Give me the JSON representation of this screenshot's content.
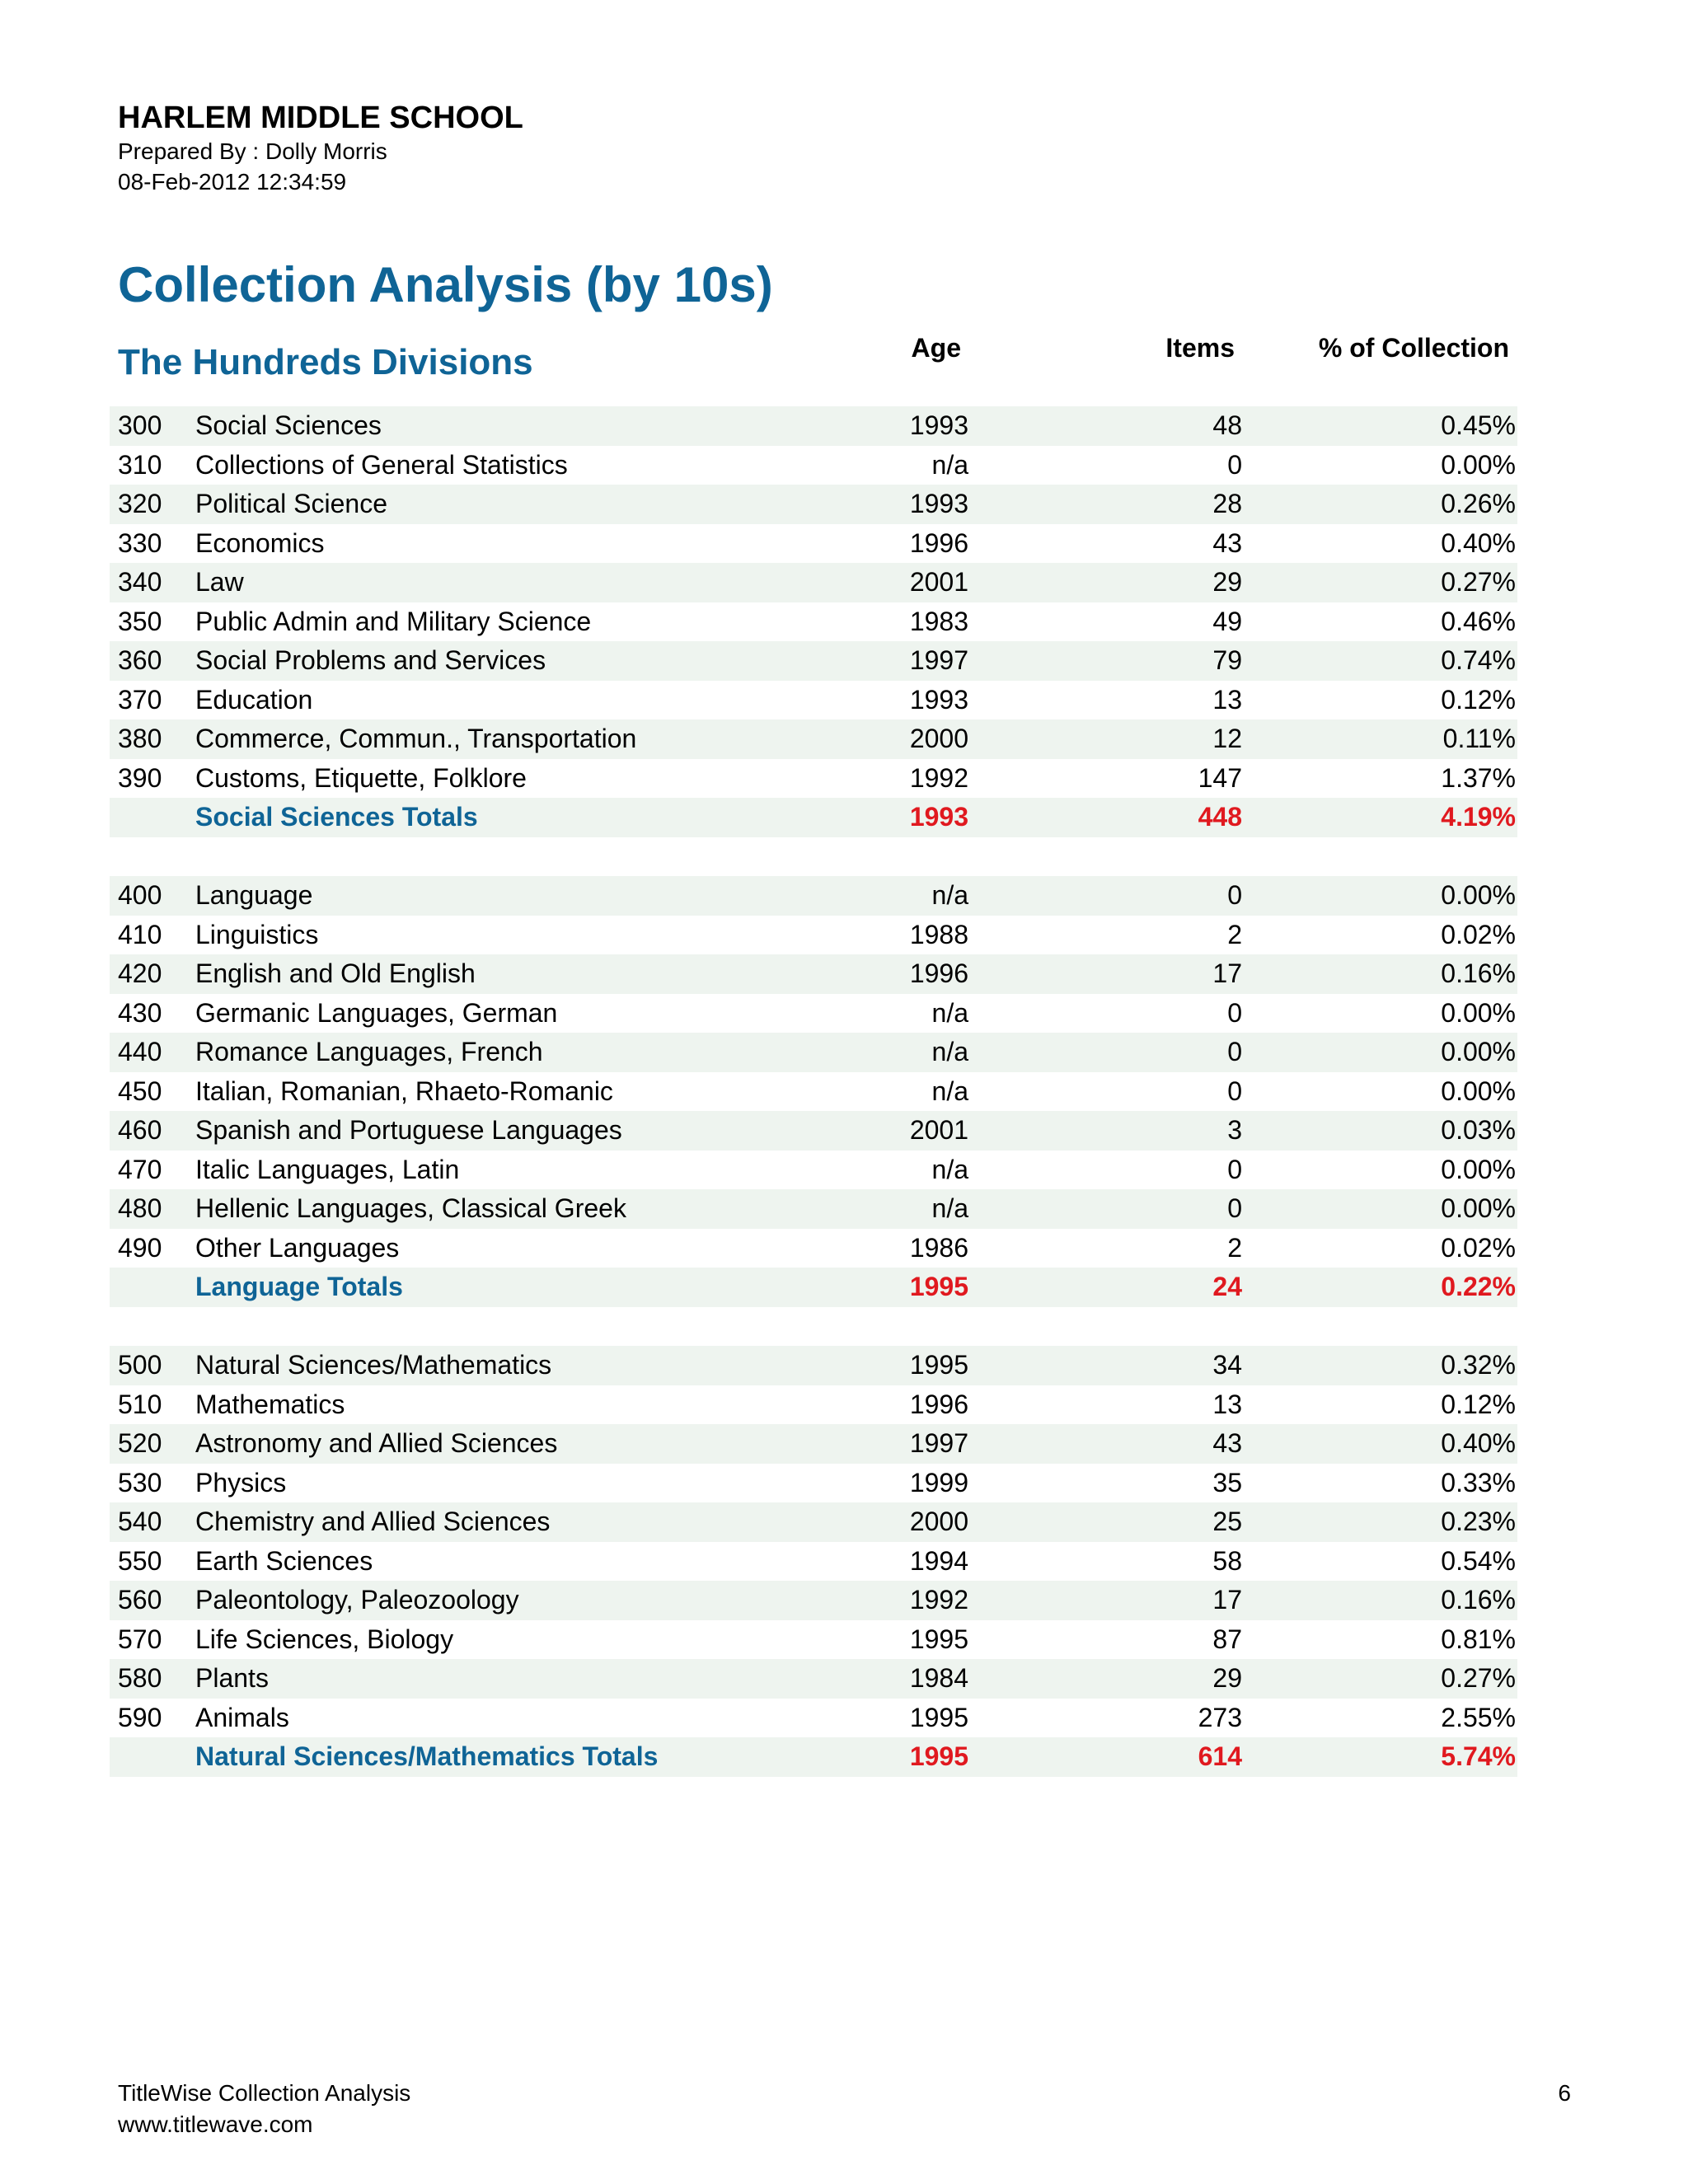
{
  "header": {
    "school": "HARLEM MIDDLE SCHOOL",
    "prepared_by": "Prepared By : Dolly Morris",
    "timestamp": "08-Feb-2012 12:34:59"
  },
  "report": {
    "title": "Collection Analysis (by 10s)",
    "section_title": "The Hundreds Divisions"
  },
  "columns": {
    "age": "Age",
    "items": "Items",
    "pct": "% of Collection"
  },
  "groups": [
    {
      "rows": [
        {
          "code": "300",
          "name": "Social Sciences",
          "age": "1993",
          "items": "48",
          "pct": "0.45%"
        },
        {
          "code": "310",
          "name": "Collections of General Statistics",
          "age": "n/a",
          "items": "0",
          "pct": "0.00%"
        },
        {
          "code": "320",
          "name": "Political Science",
          "age": "1993",
          "items": "28",
          "pct": "0.26%"
        },
        {
          "code": "330",
          "name": "Economics",
          "age": "1996",
          "items": "43",
          "pct": "0.40%"
        },
        {
          "code": "340",
          "name": "Law",
          "age": "2001",
          "items": "29",
          "pct": "0.27%"
        },
        {
          "code": "350",
          "name": "Public Admin and Military Science",
          "age": "1983",
          "items": "49",
          "pct": "0.46%"
        },
        {
          "code": "360",
          "name": "Social Problems and Services",
          "age": "1997",
          "items": "79",
          "pct": "0.74%"
        },
        {
          "code": "370",
          "name": "Education",
          "age": "1993",
          "items": "13",
          "pct": "0.12%"
        },
        {
          "code": "380",
          "name": "Commerce, Commun., Transportation",
          "age": "2000",
          "items": "12",
          "pct": "0.11%"
        },
        {
          "code": "390",
          "name": "Customs, Etiquette, Folklore",
          "age": "1992",
          "items": "147",
          "pct": "1.37%"
        }
      ],
      "total": {
        "name": "Social Sciences Totals",
        "age": "1993",
        "items": "448",
        "pct": "4.19%"
      }
    },
    {
      "rows": [
        {
          "code": "400",
          "name": "Language",
          "age": "n/a",
          "items": "0",
          "pct": "0.00%"
        },
        {
          "code": "410",
          "name": "Linguistics",
          "age": "1988",
          "items": "2",
          "pct": "0.02%"
        },
        {
          "code": "420",
          "name": "English and Old English",
          "age": "1996",
          "items": "17",
          "pct": "0.16%"
        },
        {
          "code": "430",
          "name": "Germanic Languages, German",
          "age": "n/a",
          "items": "0",
          "pct": "0.00%"
        },
        {
          "code": "440",
          "name": "Romance Languages, French",
          "age": "n/a",
          "items": "0",
          "pct": "0.00%"
        },
        {
          "code": "450",
          "name": "Italian, Romanian, Rhaeto-Romanic",
          "age": "n/a",
          "items": "0",
          "pct": "0.00%"
        },
        {
          "code": "460",
          "name": "Spanish and Portuguese Languages",
          "age": "2001",
          "items": "3",
          "pct": "0.03%"
        },
        {
          "code": "470",
          "name": "Italic Languages, Latin",
          "age": "n/a",
          "items": "0",
          "pct": "0.00%"
        },
        {
          "code": "480",
          "name": "Hellenic Languages, Classical Greek",
          "age": "n/a",
          "items": "0",
          "pct": "0.00%"
        },
        {
          "code": "490",
          "name": "Other Languages",
          "age": "1986",
          "items": "2",
          "pct": "0.02%"
        }
      ],
      "total": {
        "name": "Language Totals",
        "age": "1995",
        "items": "24",
        "pct": "0.22%"
      }
    },
    {
      "rows": [
        {
          "code": "500",
          "name": "Natural Sciences/Mathematics",
          "age": "1995",
          "items": "34",
          "pct": "0.32%"
        },
        {
          "code": "510",
          "name": "Mathematics",
          "age": "1996",
          "items": "13",
          "pct": "0.12%"
        },
        {
          "code": "520",
          "name": "Astronomy and Allied Sciences",
          "age": "1997",
          "items": "43",
          "pct": "0.40%"
        },
        {
          "code": "530",
          "name": "Physics",
          "age": "1999",
          "items": "35",
          "pct": "0.33%"
        },
        {
          "code": "540",
          "name": "Chemistry and Allied Sciences",
          "age": "2000",
          "items": "25",
          "pct": "0.23%"
        },
        {
          "code": "550",
          "name": "Earth Sciences",
          "age": "1994",
          "items": "58",
          "pct": "0.54%"
        },
        {
          "code": "560",
          "name": "Paleontology, Paleozoology",
          "age": "1992",
          "items": "17",
          "pct": "0.16%"
        },
        {
          "code": "570",
          "name": "Life Sciences, Biology",
          "age": "1995",
          "items": "87",
          "pct": "0.81%"
        },
        {
          "code": "580",
          "name": "Plants",
          "age": "1984",
          "items": "29",
          "pct": "0.27%"
        },
        {
          "code": "590",
          "name": "Animals",
          "age": "1995",
          "items": "273",
          "pct": "2.55%"
        }
      ],
      "total": {
        "name": "Natural Sciences/Mathematics Totals",
        "age": "1995",
        "items": "614",
        "pct": "5.74%"
      }
    }
  ],
  "footer": {
    "product": "TitleWise Collection Analysis",
    "url": "www.titlewave.com",
    "page_number": "6"
  },
  "colors": {
    "heading_blue": "#0f6496",
    "total_red": "#e0191f",
    "row_shade": "#eef4ef"
  }
}
